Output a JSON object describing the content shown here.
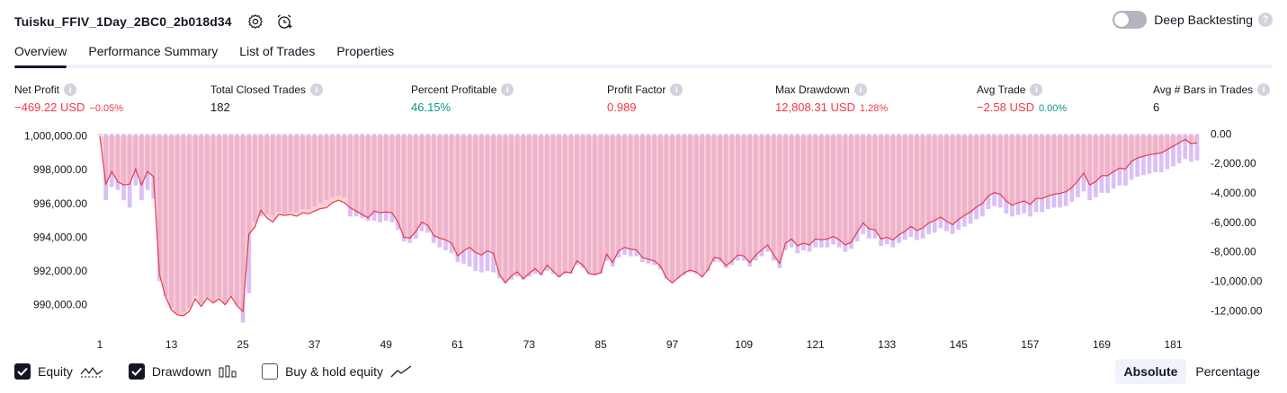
{
  "header": {
    "strategy_name": "Tuisku_FFIV_1Day_2BC0_2b018d34",
    "deep_backtesting_label": "Deep Backtesting",
    "deep_backtesting_on": false
  },
  "tabs": [
    {
      "label": "Overview",
      "active": true
    },
    {
      "label": "Performance Summary",
      "active": false
    },
    {
      "label": "List of Trades",
      "active": false
    },
    {
      "label": "Properties",
      "active": false
    }
  ],
  "metrics": {
    "net_profit": {
      "label": "Net Profit",
      "value": "−469.22 USD",
      "pct": "−0.05%"
    },
    "total_closed_trades": {
      "label": "Total Closed Trades",
      "value": "182"
    },
    "percent_profitable": {
      "label": "Percent Profitable",
      "value": "46.15%"
    },
    "profit_factor": {
      "label": "Profit Factor",
      "value": "0.989"
    },
    "max_drawdown": {
      "label": "Max Drawdown",
      "value": "12,808.31 USD",
      "pct": "1.28%"
    },
    "avg_trade": {
      "label": "Avg Trade",
      "value": "−2.58 USD",
      "pct": "0.00%"
    },
    "avg_bars": {
      "label": "Avg # Bars in Trades",
      "value": "6"
    }
  },
  "colors": {
    "negative": "#f23645",
    "positive": "#089981",
    "equity_line": "#e8394a",
    "equity_fill": "#f9a7ad",
    "drawdown_bar": "#c59af0"
  },
  "chart_data": {
    "type": "area",
    "x_ticks": [
      1,
      13,
      25,
      37,
      49,
      61,
      73,
      85,
      97,
      109,
      121,
      133,
      145,
      157,
      169,
      181
    ],
    "left_axis": {
      "ticks": [
        "1,000,000.00",
        "998,000.00",
        "996,000.00",
        "994,000.00",
        "992,000.00",
        "990,000.00"
      ],
      "ylim": [
        988600,
        1000300
      ]
    },
    "right_axis": {
      "ticks": [
        "0.00",
        "-2,000.00",
        "-4,000.00",
        "-6,000.00",
        "-8,000.00",
        "-10,000.00",
        "-12,000.00"
      ],
      "ylim": [
        -13200,
        200
      ]
    },
    "series": [
      {
        "name": "Equity",
        "values": [
          1000000,
          997150,
          997900,
          997300,
          997100,
          997150,
          998050,
          997100,
          997900,
          997600,
          991800,
          990500,
          989700,
          989400,
          989350,
          989600,
          990350,
          989900,
          990400,
          990100,
          990350,
          990000,
          990500,
          989950,
          989600,
          994200,
          994600,
          995600,
          995150,
          994900,
          995350,
          995300,
          995350,
          995250,
          995450,
          995400,
          995550,
          995700,
          995750,
          996050,
          996200,
          996050,
          995750,
          995550,
          995350,
          995150,
          995550,
          995450,
          995500,
          995450,
          994900,
          994000,
          993950,
          994350,
          994900,
          994700,
          994100,
          993950,
          993850,
          993650,
          992900,
          993200,
          993400,
          993100,
          992950,
          993200,
          993050,
          991800,
          991300,
          991700,
          991950,
          991550,
          991850,
          992150,
          991800,
          992350,
          992000,
          991650,
          991950,
          991900,
          992600,
          992350,
          991850,
          991800,
          991900,
          993000,
          992500,
          993200,
          993400,
          993300,
          993250,
          992800,
          992700,
          992600,
          992300,
          991600,
          991300,
          991600,
          991900,
          992050,
          991950,
          991650,
          992100,
          992800,
          992750,
          992300,
          992600,
          992950,
          992900,
          992500,
          992950,
          993250,
          993550,
          992950,
          992450,
          993650,
          993900,
          993500,
          993650,
          993550,
          993900,
          993850,
          993900,
          994050,
          993850,
          993550,
          993700,
          994300,
          994850,
          994500,
          994450,
          993900,
          994000,
          993850,
          994150,
          994350,
          994650,
          994400,
          994550,
          994850,
          995000,
          995200,
          994950,
          994750,
          995050,
          995300,
          995500,
          995800,
          996000,
          996450,
          996650,
          996550,
          996150,
          995900,
          996050,
          996150,
          995950,
          996300,
          996300,
          996450,
          996550,
          996600,
          996700,
          996950,
          997350,
          997800,
          997100,
          997300,
          997650,
          997650,
          997900,
          998100,
          998050,
          998500,
          998700,
          998800,
          998900,
          998950,
          999000,
          999200,
          999400,
          999600,
          999800,
          999550,
          999600
        ]
      },
      {
        "name": "Drawdown",
        "values": [
          -100,
          -4500,
          -3600,
          -3800,
          -4500,
          -5000,
          -3500,
          -4500,
          -3800,
          -4400,
          -10000,
          -11000,
          -11800,
          -12200,
          -12100,
          -11800,
          -11000,
          -11500,
          -11100,
          -11400,
          -11100,
          -11500,
          -11000,
          -11600,
          -12800,
          -10800,
          -6000,
          -5600,
          -5500,
          -5500,
          -5300,
          -5400,
          -5300,
          -5300,
          -5100,
          -5100,
          -4900,
          -4700,
          -4500,
          -4300,
          -4200,
          -4300,
          -5600,
          -5600,
          -5700,
          -5900,
          -5900,
          -6000,
          -5900,
          -6000,
          -6500,
          -7300,
          -7400,
          -7100,
          -6600,
          -6700,
          -7400,
          -7700,
          -7900,
          -8100,
          -8700,
          -8800,
          -9000,
          -9300,
          -9400,
          -9300,
          -9400,
          -9800,
          -10100,
          -9900,
          -9700,
          -9900,
          -9700,
          -9500,
          -9600,
          -9300,
          -9500,
          -9700,
          -9500,
          -9500,
          -8900,
          -9100,
          -9500,
          -9600,
          -9500,
          -8600,
          -9000,
          -8400,
          -8200,
          -8300,
          -8300,
          -8700,
          -8800,
          -8900,
          -9200,
          -9800,
          -10100,
          -9800,
          -9600,
          -9400,
          -9500,
          -9700,
          -9300,
          -8700,
          -8700,
          -9100,
          -8900,
          -8600,
          -8600,
          -9000,
          -8600,
          -8300,
          -8000,
          -8600,
          -9100,
          -7900,
          -7700,
          -8100,
          -7900,
          -8000,
          -7700,
          -7700,
          -7700,
          -7500,
          -7700,
          -8000,
          -7800,
          -7300,
          -6800,
          -7100,
          -7100,
          -7600,
          -7500,
          -7700,
          -7400,
          -7200,
          -7000,
          -7200,
          -7100,
          -6800,
          -6700,
          -6400,
          -6600,
          -6800,
          -6500,
          -6300,
          -6100,
          -5800,
          -5600,
          -5100,
          -4900,
          -5000,
          -5400,
          -5600,
          -5500,
          -5400,
          -5600,
          -5300,
          -5300,
          -5100,
          -5000,
          -5000,
          -4900,
          -4600,
          -4300,
          -3900,
          -4500,
          -4300,
          -4000,
          -4000,
          -3700,
          -3500,
          -3500,
          -3100,
          -2900,
          -2800,
          -2700,
          -2600,
          -2600,
          -2400,
          -2200,
          -2000,
          -1700,
          -1900,
          -1800
        ]
      }
    ],
    "legend": [
      "Equity",
      "Drawdown",
      "Buy & hold equity"
    ]
  },
  "legend": {
    "equity_label": "Equity",
    "drawdown_label": "Drawdown",
    "buyhold_label": "Buy & hold equity"
  },
  "modes": {
    "absolute_label": "Absolute",
    "percentage_label": "Percentage",
    "active": "absolute"
  }
}
